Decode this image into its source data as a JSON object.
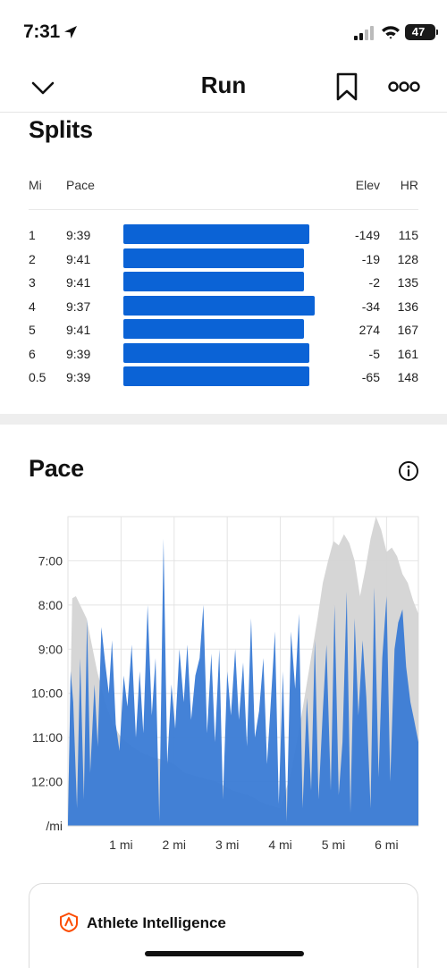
{
  "status_bar": {
    "time": "7:31",
    "battery": "47",
    "icons": [
      "location-arrow-icon",
      "cellular-signal-icon",
      "wifi-icon",
      "battery-icon"
    ]
  },
  "nav": {
    "title": "Run",
    "icons": [
      "chevron-down-icon",
      "bookmark-icon",
      "more-icon"
    ]
  },
  "splits": {
    "title": "Splits",
    "headers": {
      "mi": "Mi",
      "pace": "Pace",
      "elev": "Elev",
      "hr": "HR"
    },
    "rows": [
      {
        "mi": "1",
        "pace": "9:39",
        "elev": "-149",
        "hr": "115"
      },
      {
        "mi": "2",
        "pace": "9:41",
        "elev": "-19",
        "hr": "128"
      },
      {
        "mi": "3",
        "pace": "9:41",
        "elev": "-2",
        "hr": "135"
      },
      {
        "mi": "4",
        "pace": "9:37",
        "elev": "-34",
        "hr": "136"
      },
      {
        "mi": "5",
        "pace": "9:41",
        "elev": "274",
        "hr": "167"
      },
      {
        "mi": "6",
        "pace": "9:39",
        "elev": "-5",
        "hr": "161"
      },
      {
        "mi": "0.5",
        "pace": "9:39",
        "elev": "-65",
        "hr": "148"
      }
    ],
    "bar_color": "#0b63d6"
  },
  "pace": {
    "title": "Pace",
    "info_icon": "info-icon"
  },
  "chart_data": {
    "type": "area",
    "y_unit_label": "/mi",
    "y_tick_labels": [
      "7:00",
      "8:00",
      "9:00",
      "10:00",
      "11:00",
      "12:00"
    ],
    "x_tick_labels": [
      "1 mi",
      "2 mi",
      "3 mi",
      "4 mi",
      "5 mi",
      "6 mi"
    ],
    "ylim_min_per_mile": [
      6.0,
      13.0
    ],
    "y_inverted": true,
    "xlim_mi": [
      0,
      6.6
    ],
    "grid": true,
    "series": [
      {
        "color": "#d4d4d4",
        "x": [
          0.0,
          0.08,
          0.15,
          0.25,
          0.35,
          0.45,
          0.55,
          0.7,
          0.85,
          1.0,
          1.2,
          1.4,
          1.6,
          1.8,
          2.0,
          2.2,
          2.5,
          2.8,
          3.1,
          3.4,
          3.7,
          4.0,
          4.2,
          4.4,
          4.55,
          4.7,
          4.8,
          4.9,
          5.0,
          5.1,
          5.2,
          5.3,
          5.4,
          5.5,
          5.6,
          5.7,
          5.8,
          5.9,
          6.0,
          6.1,
          6.2,
          6.3,
          6.4,
          6.5,
          6.6
        ],
        "pace": [
          12.8,
          7.85,
          7.8,
          8.05,
          8.3,
          8.9,
          9.5,
          10.2,
          10.7,
          11.0,
          11.2,
          11.35,
          11.45,
          11.5,
          11.6,
          11.8,
          11.9,
          12.0,
          12.2,
          12.3,
          12.5,
          12.6,
          11.8,
          10.5,
          9.4,
          8.3,
          7.5,
          7.0,
          6.55,
          6.65,
          6.4,
          6.6,
          7.0,
          7.8,
          7.2,
          6.5,
          6.0,
          6.3,
          6.8,
          6.7,
          6.9,
          7.3,
          7.5,
          7.9,
          8.2
        ]
      },
      {
        "color": "#3a7bd5",
        "x": [
          0.0,
          0.05,
          0.1,
          0.17,
          0.23,
          0.3,
          0.36,
          0.42,
          0.5,
          0.56,
          0.63,
          0.7,
          0.77,
          0.83,
          0.9,
          0.97,
          1.05,
          1.12,
          1.2,
          1.28,
          1.35,
          1.42,
          1.5,
          1.58,
          1.65,
          1.72,
          1.8,
          1.87,
          1.95,
          2.02,
          2.1,
          2.18,
          2.25,
          2.32,
          2.4,
          2.48,
          2.55,
          2.62,
          2.7,
          2.77,
          2.85,
          2.92,
          3.0,
          3.07,
          3.15,
          3.22,
          3.3,
          3.37,
          3.45,
          3.52,
          3.6,
          3.68,
          3.75,
          3.82,
          3.9,
          3.97,
          4.05,
          4.12,
          4.2,
          4.28,
          4.35,
          4.42,
          4.5,
          4.58,
          4.65,
          4.72,
          4.8,
          4.87,
          4.95,
          5.02,
          5.1,
          5.17,
          5.25,
          5.32,
          5.4,
          5.47,
          5.55,
          5.62,
          5.7,
          5.77,
          5.85,
          5.92,
          6.0,
          6.07,
          6.15,
          6.22,
          6.3,
          6.37,
          6.45,
          6.52,
          6.6
        ],
        "pace": [
          12.9,
          9.5,
          10.2,
          12.6,
          9.2,
          12.4,
          8.3,
          11.8,
          9.8,
          11.2,
          8.5,
          9.3,
          10.0,
          8.8,
          10.7,
          11.3,
          9.6,
          10.3,
          8.9,
          11.0,
          9.5,
          10.9,
          8.0,
          10.5,
          9.2,
          12.9,
          6.5,
          11.6,
          9.8,
          10.8,
          9.0,
          10.2,
          8.9,
          10.6,
          9.6,
          9.2,
          8.0,
          10.9,
          9.1,
          11.1,
          9.0,
          12.4,
          9.5,
          10.5,
          9.0,
          10.6,
          9.3,
          11.2,
          8.3,
          11.0,
          10.4,
          9.2,
          11.6,
          10.2,
          8.6,
          12.5,
          9.5,
          12.9,
          8.6,
          9.9,
          8.2,
          12.6,
          10.1,
          12.2,
          8.8,
          12.4,
          10.4,
          8.9,
          12.2,
          8.0,
          12.3,
          11.1,
          7.7,
          12.7,
          8.3,
          10.5,
          8.8,
          10.1,
          12.6,
          7.6,
          11.9,
          9.2,
          7.8,
          12.0,
          9.0,
          8.4,
          8.1,
          9.4,
          10.2,
          10.6,
          11.1
        ]
      }
    ]
  },
  "ai_card": {
    "title": "Athlete Intelligence",
    "icon": "athlete-intelligence-icon",
    "accent": "#fc4c02"
  }
}
